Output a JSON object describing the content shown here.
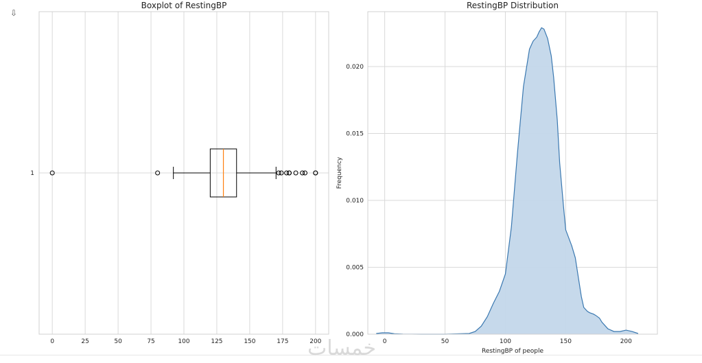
{
  "output_icon": "output-toggle-icon",
  "watermark_text": "خمسات",
  "chart_data": [
    {
      "type": "boxplot",
      "orientation": "horizontal",
      "title": "Boxplot of RestingBP",
      "xlabel": "",
      "ylabel": "",
      "xlim": [
        -10,
        210
      ],
      "xticks": [
        0,
        25,
        50,
        75,
        100,
        125,
        150,
        175,
        200
      ],
      "ytick_labels": [
        "1"
      ],
      "grid": true,
      "box": {
        "q1": 120,
        "median": 130,
        "q3": 140,
        "whisker_low": 92,
        "whisker_high": 170
      },
      "outliers": [
        0,
        80,
        172,
        174,
        178,
        180,
        180,
        185,
        190,
        192,
        200,
        200
      ],
      "colors": {
        "median": "#ff7f0e",
        "box": "#000000"
      }
    },
    {
      "type": "area",
      "title": "RestingBP Distribution",
      "xlabel": "RestingBP of people",
      "ylabel": "Frequency",
      "xlim": [
        -14,
        226
      ],
      "ylim": [
        0,
        0.0241
      ],
      "xticks": [
        0,
        50,
        100,
        150,
        200
      ],
      "yticks": [
        0.0,
        0.005,
        0.01,
        0.015,
        0.02
      ],
      "ytick_labels": [
        "0.000",
        "0.005",
        "0.010",
        "0.015",
        "0.020"
      ],
      "grid": true,
      "colors": {
        "line": "#3a78b0",
        "fill": "#c3d7ea"
      },
      "x": [
        -7,
        -2,
        0,
        3,
        8,
        15,
        30,
        50,
        70,
        75,
        80,
        85,
        90,
        95,
        100,
        105,
        110,
        115,
        120,
        123,
        126,
        128,
        130,
        132,
        135,
        138,
        140,
        143,
        145,
        148,
        150,
        155,
        158,
        160,
        163,
        165,
        168,
        170,
        173,
        175,
        178,
        180,
        185,
        190,
        195,
        200,
        205,
        210
      ],
      "y": [
        5e-05,
        0.0001,
        0.0001,
        0.0001,
        3e-05,
        1e-05,
        0.0,
        0.0,
        5e-05,
        0.0002,
        0.0006,
        0.0013,
        0.0023,
        0.0032,
        0.0045,
        0.008,
        0.0135,
        0.0185,
        0.0213,
        0.0219,
        0.0222,
        0.0226,
        0.0229,
        0.0228,
        0.0221,
        0.0208,
        0.0192,
        0.016,
        0.0128,
        0.0097,
        0.0078,
        0.0066,
        0.0057,
        0.0045,
        0.0028,
        0.002,
        0.0017,
        0.0016,
        0.0015,
        0.0014,
        0.0012,
        0.0009,
        0.0004,
        0.0002,
        0.0002,
        0.0003,
        0.0002,
        5e-05
      ]
    }
  ]
}
